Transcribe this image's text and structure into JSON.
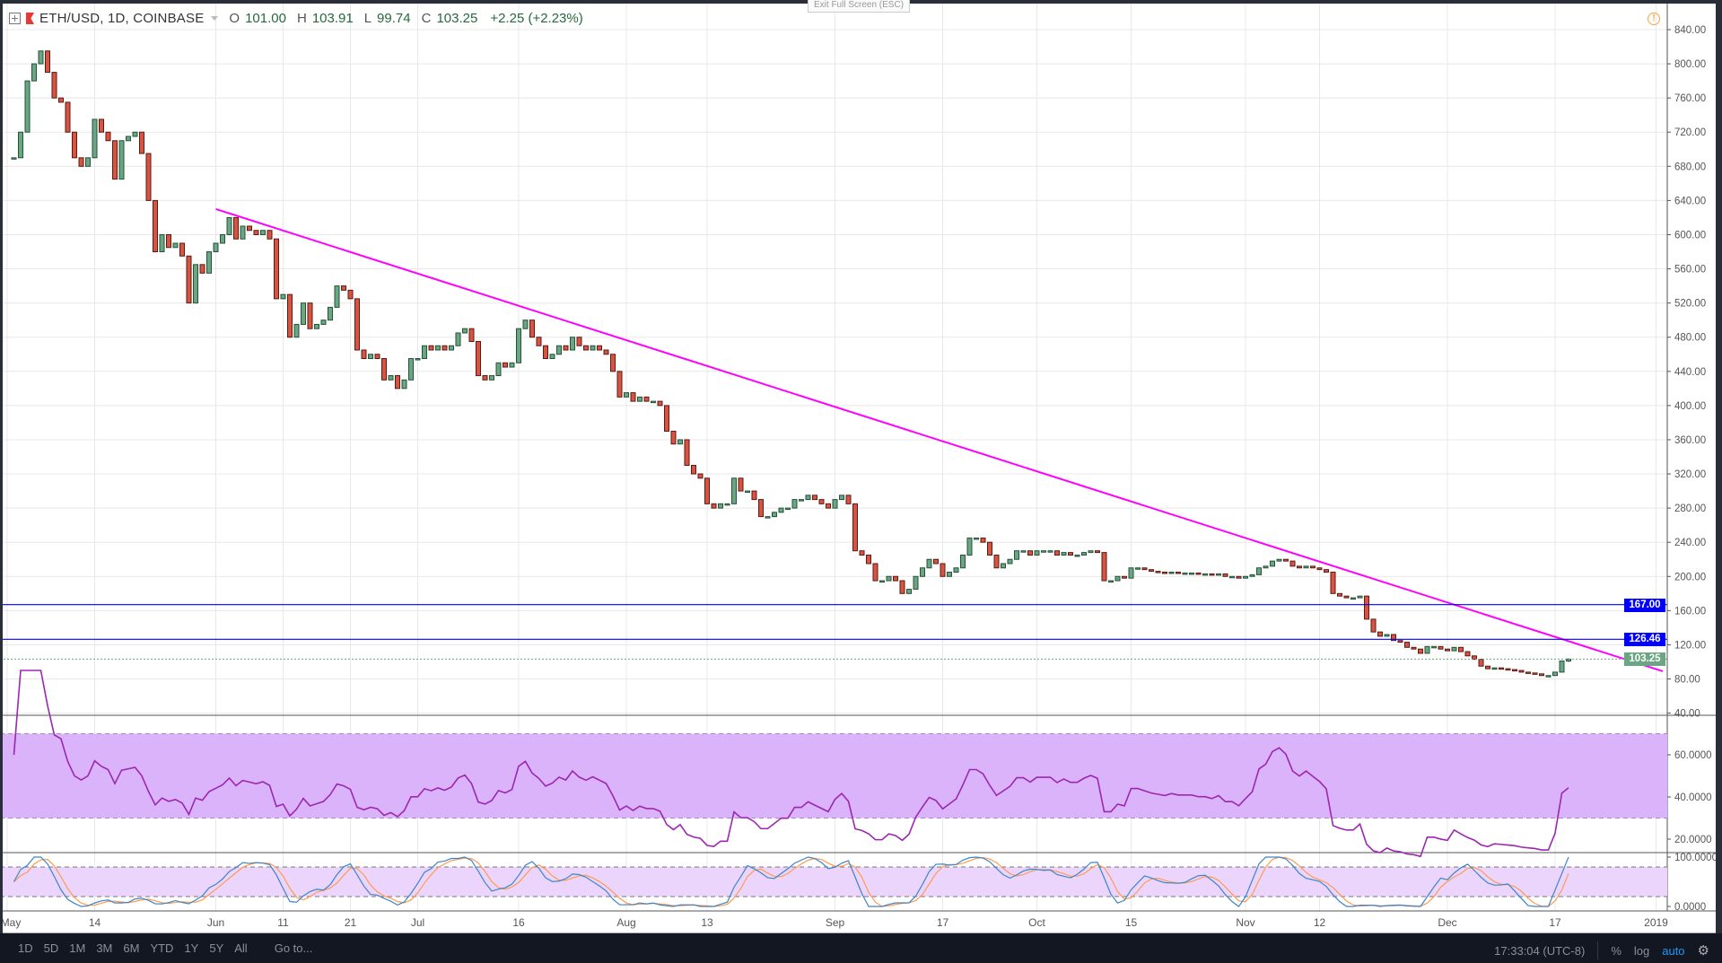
{
  "header": {
    "symbol": "ETH/USD, 1D, COINBASE",
    "open_label": "O",
    "open": "101.00",
    "high_label": "H",
    "high": "103.91",
    "low_label": "L",
    "low": "99.74",
    "close_label": "C",
    "close": "103.25",
    "change": "+2.25 (+2.23%)"
  },
  "exit_fullscreen": "Exit Full Screen (ESC)",
  "price_axis_ticks": [
    "840.00",
    "800.00",
    "760.00",
    "720.00",
    "680.00",
    "640.00",
    "600.00",
    "560.00",
    "520.00",
    "480.00",
    "440.00",
    "400.00",
    "360.00",
    "320.00",
    "280.00",
    "240.00",
    "200.00",
    "160.00",
    "120.00",
    "80.00",
    "40.00"
  ],
  "rsi_axis_ticks": [
    "60.0000",
    "40.0000",
    "20.0000"
  ],
  "stoch_axis_ticks": [
    "100.0000",
    "0.0000"
  ],
  "price_labels": {
    "line1": "167.00",
    "line2": "126.46",
    "last": "103.25"
  },
  "colors": {
    "up": "#6ba583",
    "up_border": "#225437",
    "down": "#d75442",
    "down_border": "#5b1a13",
    "trendline": "#ff00ff",
    "hline": "#0000ff",
    "last_price": "#6ba583",
    "rsi_line": "#9c27b0",
    "rsi_band": "#dab3fb",
    "stoch_k": "#3d85c6",
    "stoch_d": "#ff9b52",
    "stoch_band": "#ebd5fc"
  },
  "chart_data": {
    "type": "candlestick",
    "symbol": "ETH/USD",
    "interval": "1D",
    "start_date": "2018-05-02",
    "closes": [
      690,
      720,
      780,
      800,
      815,
      790,
      760,
      755,
      720,
      690,
      680,
      690,
      735,
      720,
      710,
      665,
      710,
      715,
      720,
      695,
      640,
      580,
      600,
      585,
      590,
      575,
      520,
      565,
      555,
      580,
      590,
      600,
      620,
      595,
      610,
      605,
      600,
      605,
      595,
      525,
      530,
      480,
      495,
      520,
      490,
      495,
      500,
      515,
      540,
      535,
      525,
      465,
      455,
      460,
      455,
      430,
      435,
      420,
      430,
      455,
      455,
      470,
      465,
      470,
      465,
      470,
      485,
      490,
      475,
      435,
      430,
      435,
      450,
      445,
      450,
      490,
      500,
      480,
      470,
      455,
      460,
      470,
      465,
      480,
      470,
      465,
      470,
      465,
      460,
      440,
      410,
      415,
      405,
      410,
      405,
      405,
      400,
      370,
      355,
      360,
      330,
      320,
      315,
      285,
      280,
      285,
      285,
      315,
      300,
      300,
      290,
      270,
      270,
      275,
      280,
      280,
      290,
      290,
      295,
      290,
      285,
      280,
      290,
      295,
      285,
      230,
      225,
      215,
      195,
      195,
      200,
      195,
      180,
      185,
      200,
      210,
      220,
      215,
      200,
      205,
      210,
      225,
      245,
      245,
      240,
      225,
      210,
      215,
      220,
      230,
      230,
      225,
      230,
      230,
      230,
      225,
      228,
      225,
      225,
      228,
      230,
      228,
      195,
      195,
      200,
      198,
      210,
      210,
      208,
      206,
      205,
      204,
      205,
      204,
      204,
      204,
      203,
      203,
      202,
      203,
      200,
      200,
      198,
      200,
      202,
      210,
      212,
      218,
      220,
      218,
      212,
      210,
      212,
      210,
      208,
      205,
      180,
      177,
      175,
      175,
      177,
      150,
      135,
      130,
      132,
      125,
      123,
      117,
      115,
      110,
      118,
      118,
      115,
      113,
      117,
      112,
      107,
      103,
      95,
      92,
      93,
      92,
      91,
      90,
      88,
      87,
      86,
      84,
      84,
      88,
      101,
      103.25
    ],
    "last_candle": {
      "open": 101.0,
      "high": 103.91,
      "low": 99.74,
      "close": 103.25
    },
    "ylim": [
      40,
      860
    ],
    "scale": "linear",
    "grid": true,
    "trendline": {
      "from": {
        "date": "2018-06-01",
        "price": 630
      },
      "to": {
        "date": "2019-01-02",
        "price": 89
      }
    },
    "horizontal_lines": [
      167.0,
      126.46
    ],
    "last_price_line": 103.25,
    "indicators": [
      "RSI (14, bands 30/70)",
      "Stochastic RSI (bands 20/80)"
    ],
    "x_ticks": [
      {
        "label": "May",
        "date": "2018-05-01"
      },
      {
        "label": "14",
        "date": "2018-05-14"
      },
      {
        "label": "Jun",
        "date": "2018-06-01"
      },
      {
        "label": "11",
        "date": "2018-06-11"
      },
      {
        "label": "21",
        "date": "2018-06-21"
      },
      {
        "label": "Jul",
        "date": "2018-07-01"
      },
      {
        "label": "16",
        "date": "2018-07-16"
      },
      {
        "label": "Aug",
        "date": "2018-08-01"
      },
      {
        "label": "13",
        "date": "2018-08-13"
      },
      {
        "label": "Sep",
        "date": "2018-09-01"
      },
      {
        "label": "17",
        "date": "2018-09-17"
      },
      {
        "label": "Oct",
        "date": "2018-10-01"
      },
      {
        "label": "15",
        "date": "2018-10-15"
      },
      {
        "label": "Nov",
        "date": "2018-11-01"
      },
      {
        "label": "12",
        "date": "2018-11-12"
      },
      {
        "label": "Dec",
        "date": "2018-12-01"
      },
      {
        "label": "17",
        "date": "2018-12-17"
      },
      {
        "label": "2019",
        "date": "2019-01-01"
      }
    ]
  },
  "bottom_bar": {
    "ranges": [
      "1D",
      "5D",
      "1M",
      "3M",
      "6M",
      "YTD",
      "1Y",
      "5Y",
      "All"
    ],
    "goto": "Go to...",
    "clock": "17:33:04 (UTC-8)",
    "percent": "%",
    "log": "log",
    "auto": "auto"
  }
}
